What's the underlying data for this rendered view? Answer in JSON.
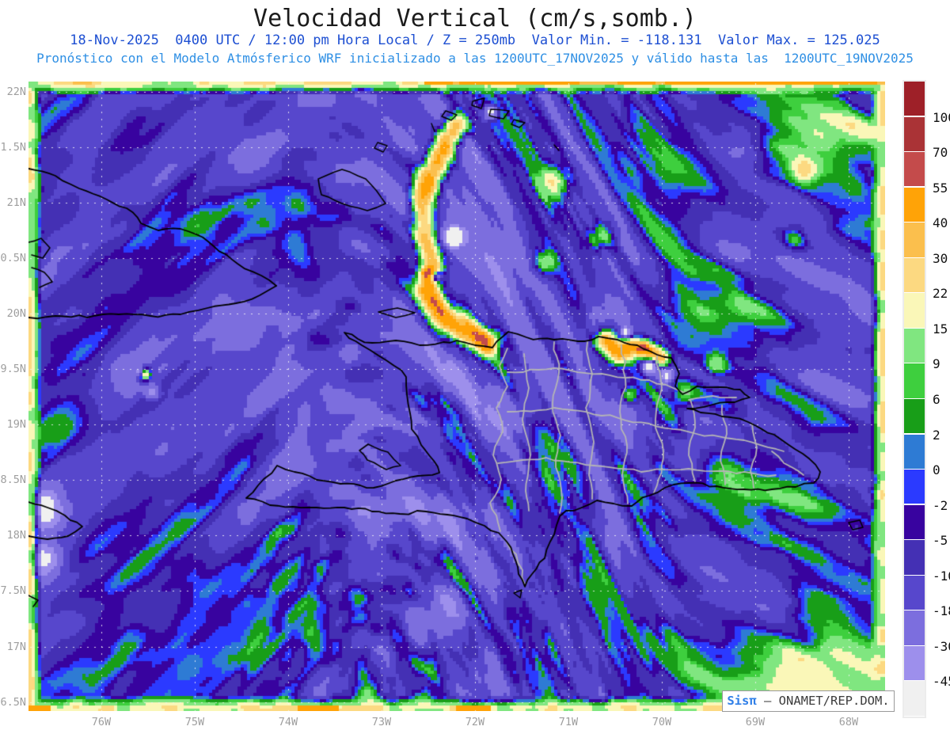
{
  "header": {
    "title": "Velocidad Vertical (cm/s,somb.)",
    "title_color": "#1b1b1b",
    "subtitle_line1": "18-Nov-2025  0400 UTC / 12:00 pm Hora Local / Z = 250mb  Valor Min. = -118.131  Valor Max. = 125.025",
    "subtitle1_color": "#1d4fd2",
    "subtitle_line2": "Pronóstico con el Modelo Atmósferico WRF inicializado a las 1200UTC_17NOV2025 y válido hasta las  1200UTC_19NOV2025",
    "subtitle2_color": "#2e8fe4"
  },
  "watermark": {
    "brand": "Sisπ",
    "brand_color": "#2f7fe8",
    "rest": " – ONAMET/REP.DOM.",
    "text_color": "#3c3c3c"
  },
  "chart_data": {
    "type": "heatmap",
    "title": "Velocidad Vertical (cm/s,somb.)",
    "variable": "vertical velocity (shaded)",
    "units": "cm/s",
    "pressure_level": "250mb",
    "valid_time": "18-Nov-2025 0400 UTC / 12:00 pm Hora Local",
    "model": "WRF",
    "initialized": "1200UTC_17NOV2025",
    "valid_until": "1200UTC_19NOV2025",
    "value_min": -118.131,
    "value_max": 125.025,
    "x_axis": {
      "ticks": [
        "76W",
        "75W",
        "74W",
        "73W",
        "72W",
        "71W",
        "70W",
        "69W",
        "68W"
      ],
      "label_color": "#9e9e9e"
    },
    "y_axis": {
      "ticks": [
        "22N",
        "1.5N",
        "21N",
        "0.5N",
        "20N",
        "9.5N",
        "19N",
        "8.5N",
        "18N",
        "7.5N",
        "17N",
        "6.5N"
      ],
      "label_color": "#9e9e9e"
    },
    "colorbar": {
      "levels": [
        100,
        70,
        55,
        40,
        30,
        22,
        15,
        9,
        6,
        2,
        0,
        -2,
        -5,
        -10,
        -18,
        -30,
        -45
      ],
      "colors_top_to_bottom": [
        "#9e2028",
        "#aa3336",
        "#c44b4b",
        "#ffa307",
        "#fbbf4d",
        "#fcd981",
        "#faf7b8",
        "#80e680",
        "#3ecf3e",
        "#189e18",
        "#2e7bd4",
        "#2b3aff",
        "#38039f",
        "#4430b4",
        "#5747cc",
        "#7c6ede",
        "#9d8fec",
        "#f0f0f0"
      ]
    },
    "grid": {
      "h_step_deg": 0.5,
      "v_step_deg": 1.0,
      "style": "dotted"
    },
    "region": "Hispaniola / eastern Cuba / Jamaica / Bahamas",
    "lat_range_n": [
      16.4,
      22.1
    ],
    "lon_range_w": [
      76.8,
      67.6
    ]
  }
}
